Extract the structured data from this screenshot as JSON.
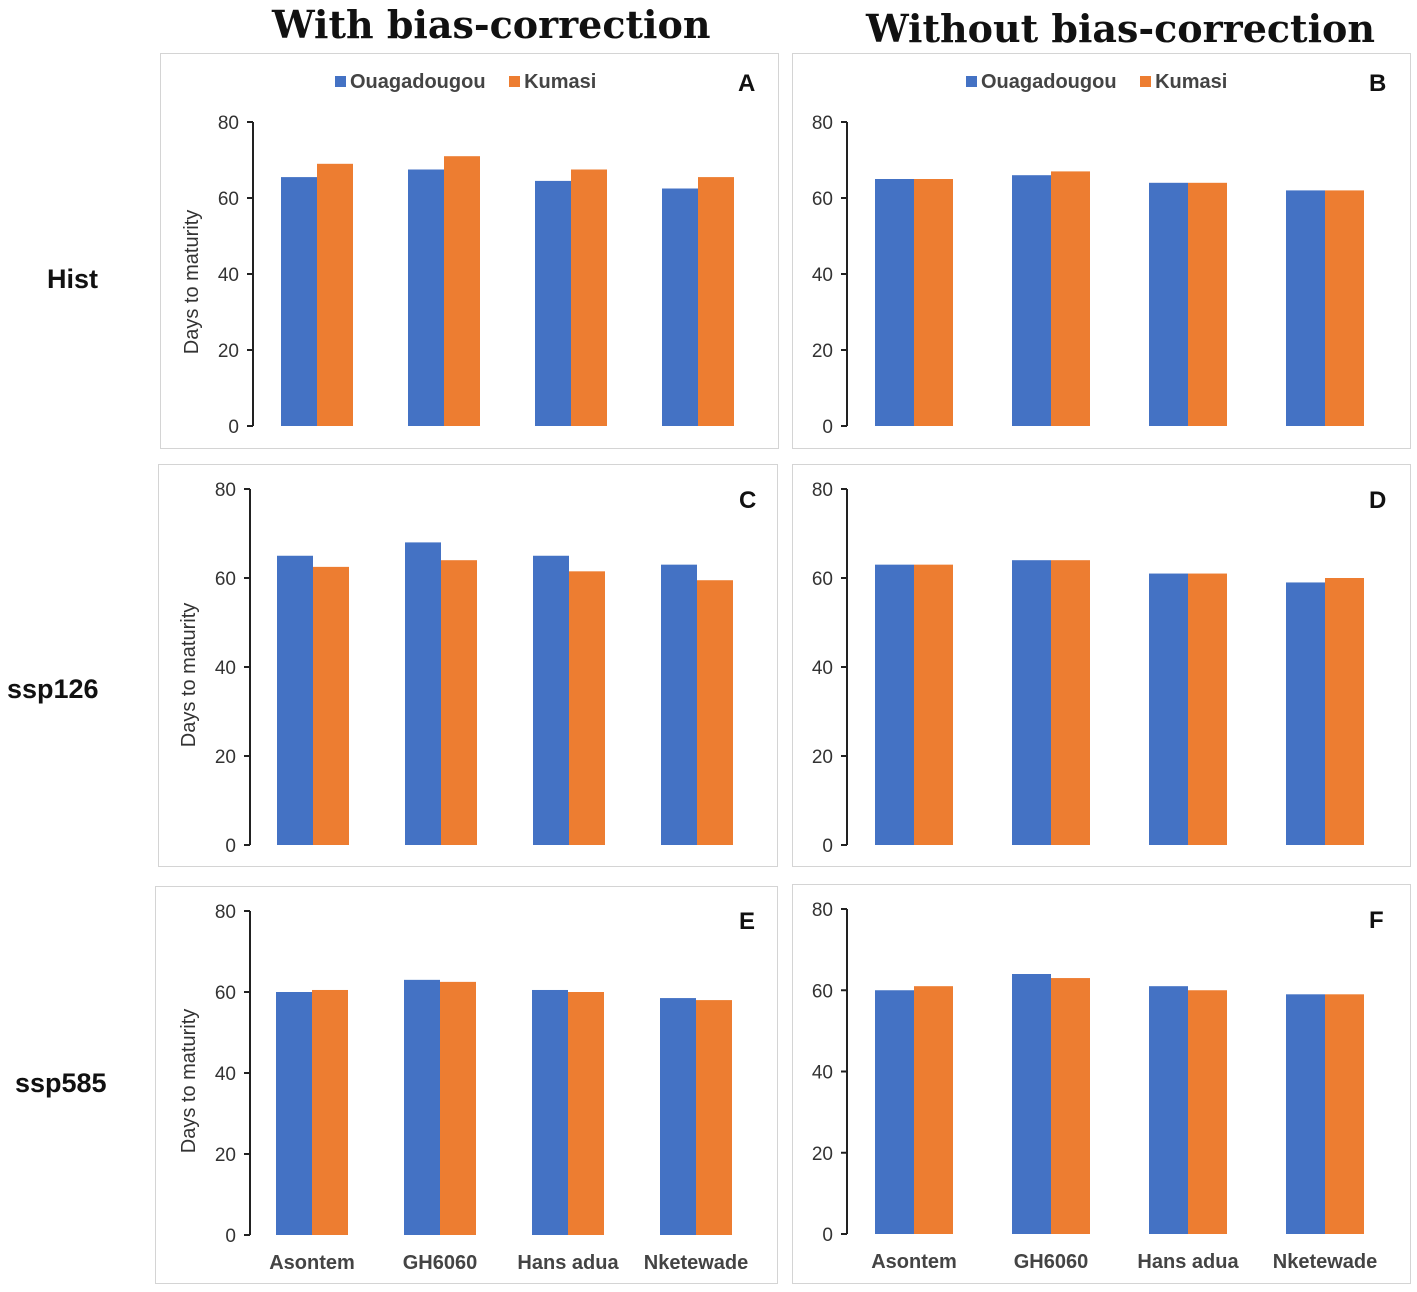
{
  "column_titles": [
    "With bias-correction",
    "Without bias-correction"
  ],
  "row_labels": [
    "Hist",
    "ssp126",
    "ssp585"
  ],
  "series_colors": {
    "Ouagadougou": "#4472C4",
    "Kumasi": "#ED7D31"
  },
  "chart_data": [
    {
      "id": "A",
      "type": "bar",
      "title": "",
      "ylabel": "Days to maturity",
      "xlabel": "",
      "ylim": [
        0,
        80
      ],
      "yticks": [
        "0",
        "20",
        "40",
        "60",
        "80"
      ],
      "categories": [
        "Asontem",
        "GH6060",
        "Hans adua",
        "Nketewade"
      ],
      "show_xticks": false,
      "show_legend": true,
      "legend": [
        "Ouagadougou",
        "Kumasi"
      ],
      "series": [
        {
          "name": "Ouagadougou",
          "values": [
            65.5,
            67.5,
            64.5,
            62.5
          ]
        },
        {
          "name": "Kumasi",
          "values": [
            69,
            71,
            67.5,
            65.5
          ]
        }
      ]
    },
    {
      "id": "B",
      "type": "bar",
      "title": "",
      "ylabel": "",
      "xlabel": "",
      "ylim": [
        0,
        80
      ],
      "yticks": [
        "0",
        "20",
        "40",
        "60",
        "80"
      ],
      "categories": [
        "Asontem",
        "GH6060",
        "Hans adua",
        "Nketewade"
      ],
      "show_xticks": false,
      "show_legend": true,
      "legend": [
        "Ouagadougou",
        "Kumasi"
      ],
      "series": [
        {
          "name": "Ouagadougou",
          "values": [
            65,
            66,
            64,
            62
          ]
        },
        {
          "name": "Kumasi",
          "values": [
            65,
            67,
            64,
            62
          ]
        }
      ]
    },
    {
      "id": "C",
      "type": "bar",
      "title": "",
      "ylabel": "Days to maturity",
      "xlabel": "",
      "ylim": [
        0,
        80
      ],
      "yticks": [
        "0",
        "20",
        "40",
        "60",
        "80"
      ],
      "categories": [
        "Asontem",
        "GH6060",
        "Hans adua",
        "Nketewade"
      ],
      "show_xticks": false,
      "show_legend": false,
      "legend": [],
      "series": [
        {
          "name": "Ouagadougou",
          "values": [
            65,
            68,
            65,
            63
          ]
        },
        {
          "name": "Kumasi",
          "values": [
            62.5,
            64,
            61.5,
            59.5
          ]
        }
      ]
    },
    {
      "id": "D",
      "type": "bar",
      "title": "",
      "ylabel": "",
      "xlabel": "",
      "ylim": [
        0,
        80
      ],
      "yticks": [
        "0",
        "20",
        "40",
        "60",
        "80"
      ],
      "categories": [
        "Asontem",
        "GH6060",
        "Hans adua",
        "Nketewade"
      ],
      "show_xticks": false,
      "show_legend": false,
      "legend": [],
      "series": [
        {
          "name": "Ouagadougou",
          "values": [
            63,
            64,
            61,
            59
          ]
        },
        {
          "name": "Kumasi",
          "values": [
            63,
            64,
            61,
            60
          ]
        }
      ]
    },
    {
      "id": "E",
      "type": "bar",
      "title": "",
      "ylabel": "Days to maturity",
      "xlabel": "",
      "ylim": [
        0,
        80
      ],
      "yticks": [
        "0",
        "20",
        "40",
        "60",
        "80"
      ],
      "categories": [
        "Asontem",
        "GH6060",
        "Hans adua",
        "Nketewade"
      ],
      "show_xticks": true,
      "show_legend": false,
      "legend": [],
      "series": [
        {
          "name": "Ouagadougou",
          "values": [
            60,
            63,
            60.5,
            58.5
          ]
        },
        {
          "name": "Kumasi",
          "values": [
            60.5,
            62.5,
            60,
            58
          ]
        }
      ]
    },
    {
      "id": "F",
      "type": "bar",
      "title": "",
      "ylabel": "",
      "xlabel": "",
      "ylim": [
        0,
        80
      ],
      "yticks": [
        "0",
        "20",
        "40",
        "60",
        "80"
      ],
      "categories": [
        "Asontem",
        "GH6060",
        "Hans adua",
        "Nketewade"
      ],
      "show_xticks": true,
      "show_legend": false,
      "legend": [],
      "series": [
        {
          "name": "Ouagadougou",
          "values": [
            60,
            64,
            61,
            59
          ]
        },
        {
          "name": "Kumasi",
          "values": [
            61,
            63,
            60,
            59
          ]
        }
      ]
    }
  ]
}
